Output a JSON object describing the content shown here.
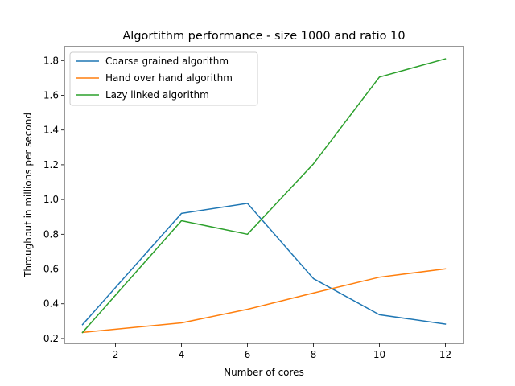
{
  "chart_data": {
    "type": "line",
    "title": "Algortithm performance - size 1000 and ratio 10",
    "xlabel": "Number of cores",
    "ylabel": "Throughput in millions per second",
    "x": [
      1,
      4,
      6,
      8,
      10,
      12
    ],
    "xlim": [
      0.45,
      12.55
    ],
    "ylim": [
      0.172,
      1.88
    ],
    "xticks": [
      2,
      4,
      6,
      8,
      10,
      12
    ],
    "yticks": [
      0.2,
      0.4,
      0.6,
      0.8,
      1.0,
      1.2,
      1.4,
      1.6,
      1.8
    ],
    "xtick_labels": [
      "2",
      "4",
      "6",
      "8",
      "10",
      "12"
    ],
    "ytick_labels": [
      "0.2",
      "0.4",
      "0.6",
      "0.8",
      "1.0",
      "1.2",
      "1.4",
      "1.6",
      "1.8"
    ],
    "grid": false,
    "legend_position": "top-left",
    "series": [
      {
        "name": "Coarse grained algorithm",
        "color": "#1f77b4",
        "values": [
          0.28,
          0.92,
          0.978,
          0.545,
          0.337,
          0.283
        ]
      },
      {
        "name": "Hand over hand algorithm",
        "color": "#ff7f0e",
        "values": [
          0.235,
          0.29,
          0.368,
          0.462,
          0.553,
          0.601
        ]
      },
      {
        "name": "Lazy linked algorithm",
        "color": "#2ca02c",
        "values": [
          0.235,
          0.878,
          0.8,
          1.205,
          1.705,
          1.81
        ]
      }
    ]
  }
}
